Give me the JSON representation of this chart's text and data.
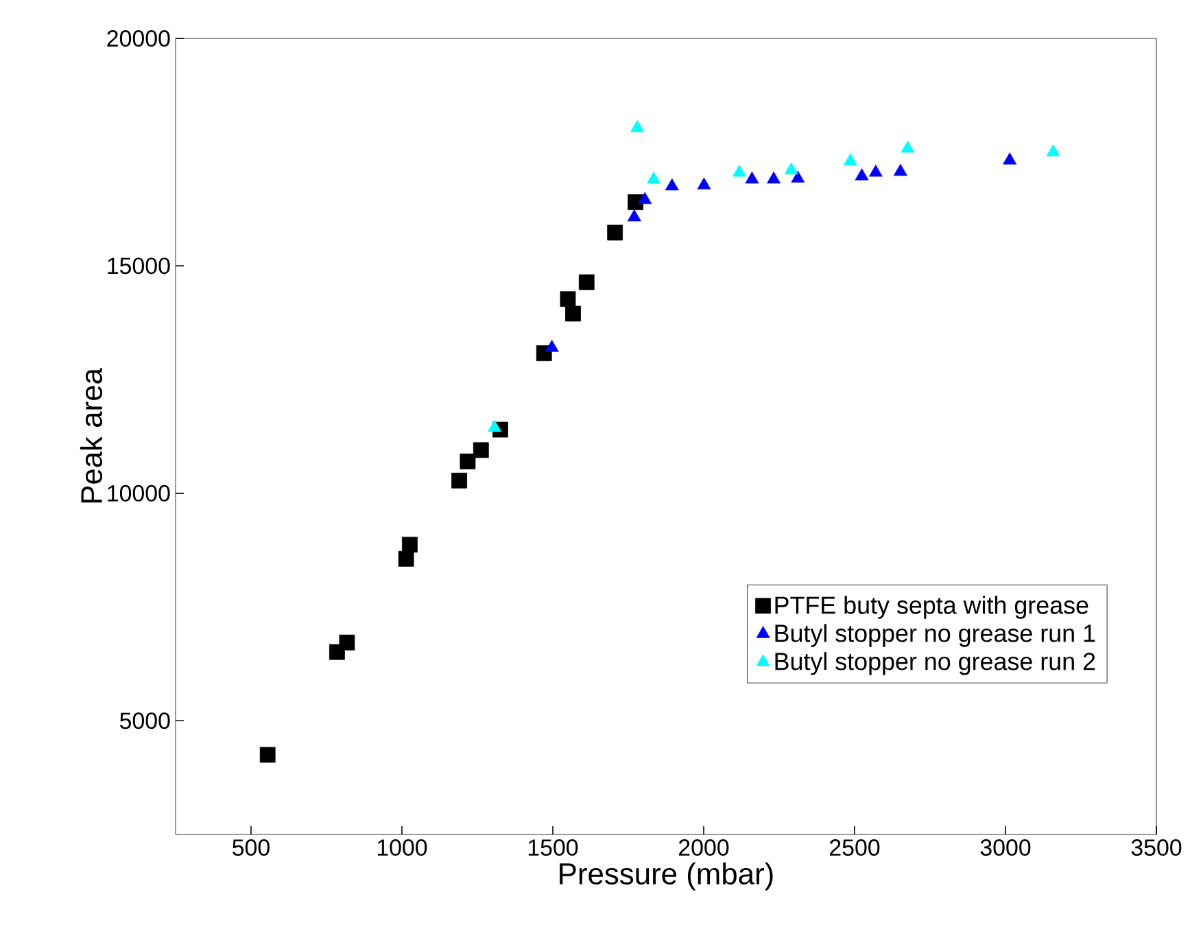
{
  "chart_data": {
    "type": "scatter",
    "xlabel": "Pressure (mbar)",
    "ylabel": "Peak area",
    "xlim": [
      250,
      3500
    ],
    "ylim": [
      2500,
      20000
    ],
    "xticks": [
      500,
      1000,
      1500,
      2000,
      2500,
      3000,
      3500
    ],
    "yticks": [
      5000,
      10000,
      15000,
      20000
    ],
    "legend": "right",
    "grid": false,
    "series": [
      {
        "name": "PTFE buty septa with grease",
        "color": "#000000",
        "marker": "square",
        "x": [
          555,
          785,
          818,
          1014,
          1026,
          1190,
          1218,
          1262,
          1326,
          1471,
          1550,
          1567,
          1612,
          1706,
          1774
        ],
        "values": [
          4250,
          6510,
          6720,
          8560,
          8870,
          10280,
          10700,
          10950,
          11400,
          13080,
          14270,
          13950,
          14640,
          15730,
          16400
        ]
      },
      {
        "name": "Butyl stopper no grease run 1",
        "color": "#0000ff",
        "marker": "triangle",
        "x": [
          1497,
          1770,
          1805,
          1895,
          2001,
          2160,
          2232,
          2312,
          2524,
          2570,
          2652,
          3014
        ],
        "values": [
          13200,
          16070,
          16450,
          16750,
          16770,
          16900,
          16900,
          16920,
          16970,
          17050,
          17070,
          17320
        ]
      },
      {
        "name": "Butyl stopper no grease run 2",
        "color": "#00ffff",
        "marker": "triangle",
        "x": [
          1307,
          1780,
          1834,
          2118,
          2290,
          2486,
          2676,
          3158
        ],
        "values": [
          11440,
          18030,
          16900,
          17050,
          17100,
          17300,
          17580,
          17500
        ]
      }
    ]
  }
}
